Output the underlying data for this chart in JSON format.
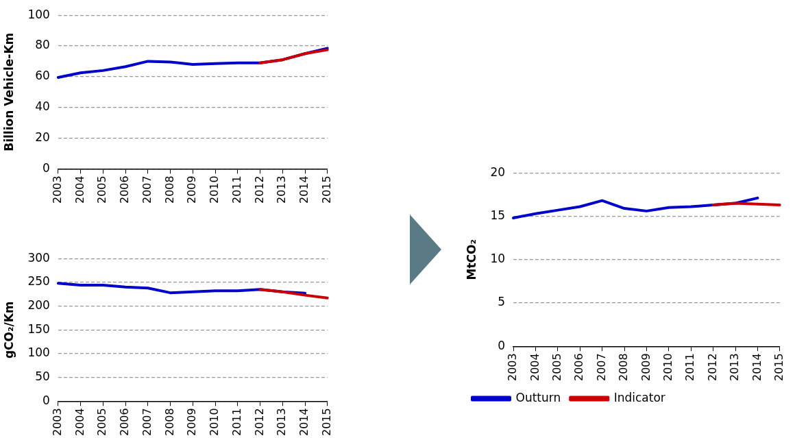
{
  "chart_data": [
    {
      "type": "line",
      "ylabel": "Billion Vehicle-Km",
      "categories": [
        "2003",
        "2004",
        "2005",
        "2006",
        "2007",
        "2008",
        "2009",
        "2010",
        "2011",
        "2012",
        "2013",
        "2014",
        "2015"
      ],
      "ylim": [
        0,
        100
      ],
      "yticks": [
        0,
        20,
        40,
        60,
        80,
        100
      ],
      "grid": "y",
      "line_style": "solid",
      "marker": "none",
      "series": [
        {
          "color": "#0000cc",
          "values": [
            59.5,
            62.5,
            64,
            66.5,
            70,
            69.5,
            68,
            68.5,
            69,
            69,
            71,
            75,
            78.5
          ]
        },
        {
          "color": "#cc0000",
          "values": [
            null,
            null,
            null,
            null,
            null,
            null,
            null,
            null,
            null,
            69,
            71,
            75,
            77.5
          ]
        }
      ]
    },
    {
      "type": "line",
      "ylabel": "gCO₂/Km",
      "categories": [
        "2003",
        "2004",
        "2005",
        "2006",
        "2007",
        "2008",
        "2009",
        "2010",
        "2011",
        "2012",
        "2013",
        "2014",
        "2015"
      ],
      "ylim": [
        0,
        300
      ],
      "yticks": [
        0,
        50,
        100,
        150,
        200,
        250,
        300
      ],
      "grid": "y",
      "line_style": "solid",
      "marker": "none",
      "series": [
        {
          "color": "#0000cc",
          "values": [
            248,
            244,
            244,
            240,
            238,
            228,
            230,
            232,
            232,
            235,
            230,
            227,
            null
          ]
        },
        {
          "color": "#cc0000",
          "values": [
            null,
            null,
            null,
            null,
            null,
            null,
            null,
            null,
            null,
            235,
            230,
            223,
            217
          ]
        }
      ]
    },
    {
      "type": "line",
      "ylabel": "MtCO₂",
      "categories": [
        "2003",
        "2004",
        "2005",
        "2006",
        "2007",
        "2008",
        "2009",
        "2010",
        "2011",
        "2012",
        "2013",
        "2014",
        "2015"
      ],
      "ylim": [
        0,
        20
      ],
      "yticks": [
        0,
        5,
        10,
        15,
        20
      ],
      "grid": "y",
      "legend": "bottom",
      "line_style": "solid",
      "marker": "none",
      "series": [
        {
          "name": "Outturn",
          "color": "#0000cc",
          "values": [
            14.8,
            15.3,
            15.7,
            16.1,
            16.8,
            15.9,
            15.6,
            16.0,
            16.1,
            16.3,
            16.5,
            17.1,
            null
          ]
        },
        {
          "name": "Indicator",
          "color": "#cc0000",
          "values": [
            null,
            null,
            null,
            null,
            null,
            null,
            null,
            null,
            null,
            16.3,
            16.5,
            16.4,
            16.3
          ]
        }
      ]
    }
  ]
}
